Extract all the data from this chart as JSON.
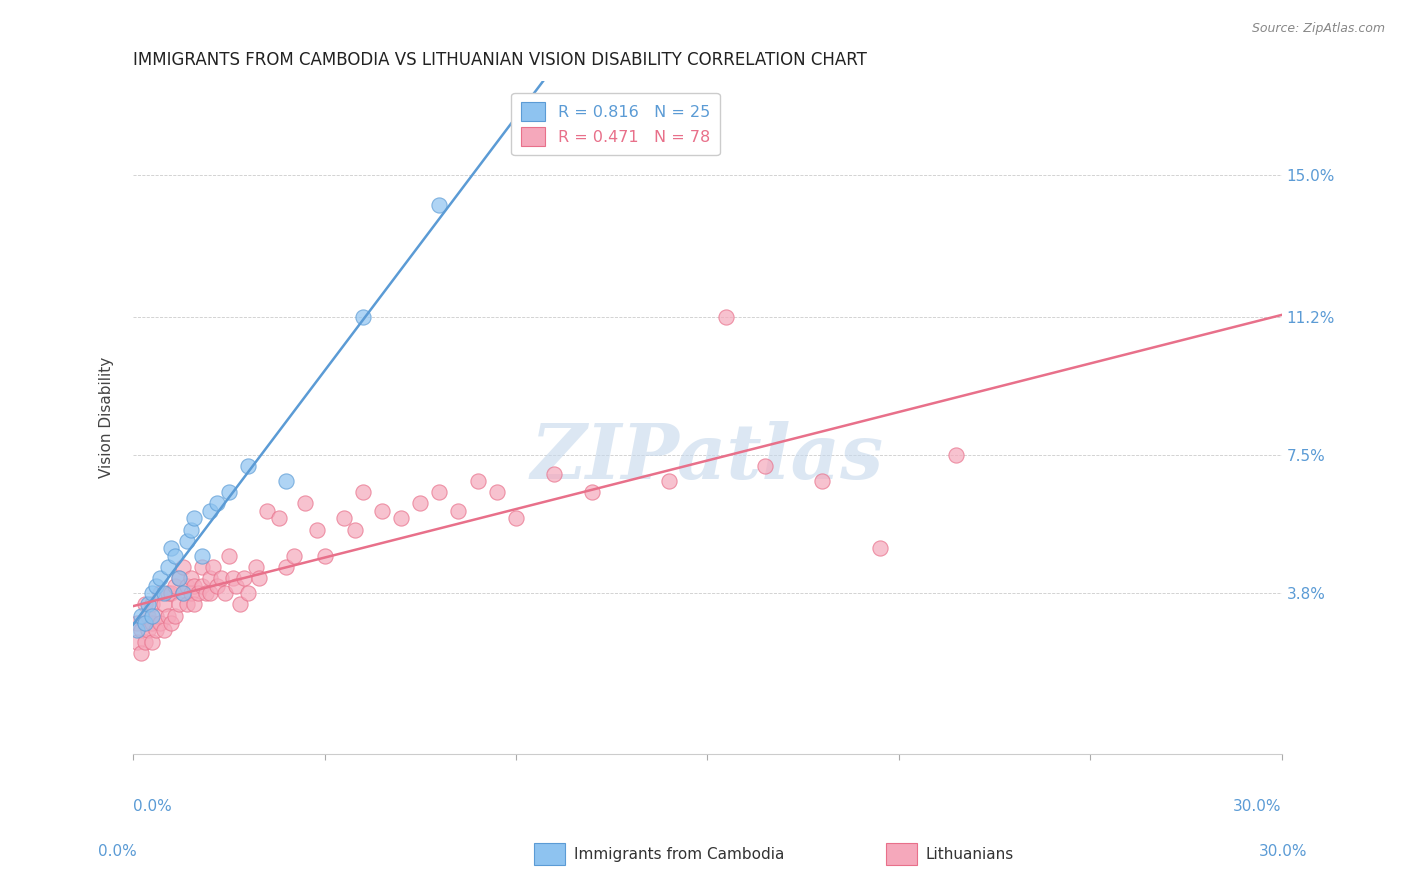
{
  "title": "IMMIGRANTS FROM CAMBODIA VS LITHUANIAN VISION DISABILITY CORRELATION CHART",
  "source": "Source: ZipAtlas.com",
  "ylabel": "Vision Disability",
  "ytick_labels": [
    "15.0%",
    "11.2%",
    "7.5%",
    "3.8%"
  ],
  "ytick_values": [
    0.15,
    0.112,
    0.075,
    0.038
  ],
  "xlim": [
    0.0,
    0.3
  ],
  "ylim": [
    -0.005,
    0.175
  ],
  "color_cambodia": "#8EC3F0",
  "color_lithuanian": "#F5A8BB",
  "color_line_cambodia": "#5B9BD5",
  "color_line_lithuanian": "#E8708A",
  "watermark_text": "ZIPatlas",
  "legend_line1": "R = 0.816   N = 25",
  "legend_line2": "R = 0.471   N = 78",
  "scatter_cambodia_x": [
    0.001,
    0.002,
    0.003,
    0.004,
    0.005,
    0.005,
    0.006,
    0.007,
    0.008,
    0.009,
    0.01,
    0.011,
    0.012,
    0.013,
    0.014,
    0.015,
    0.016,
    0.018,
    0.02,
    0.022,
    0.025,
    0.03,
    0.04,
    0.06,
    0.08
  ],
  "scatter_cambodia_y": [
    0.028,
    0.032,
    0.03,
    0.035,
    0.032,
    0.038,
    0.04,
    0.042,
    0.038,
    0.045,
    0.05,
    0.048,
    0.042,
    0.038,
    0.052,
    0.055,
    0.058,
    0.048,
    0.06,
    0.062,
    0.065,
    0.072,
    0.068,
    0.112,
    0.142
  ],
  "scatter_lithuanian_x": [
    0.001,
    0.001,
    0.002,
    0.002,
    0.003,
    0.003,
    0.003,
    0.004,
    0.004,
    0.005,
    0.005,
    0.005,
    0.006,
    0.006,
    0.007,
    0.007,
    0.008,
    0.008,
    0.009,
    0.009,
    0.01,
    0.01,
    0.011,
    0.011,
    0.012,
    0.012,
    0.013,
    0.013,
    0.014,
    0.014,
    0.015,
    0.015,
    0.016,
    0.016,
    0.017,
    0.018,
    0.018,
    0.019,
    0.02,
    0.02,
    0.021,
    0.022,
    0.023,
    0.024,
    0.025,
    0.026,
    0.027,
    0.028,
    0.029,
    0.03,
    0.032,
    0.033,
    0.035,
    0.038,
    0.04,
    0.042,
    0.045,
    0.048,
    0.05,
    0.055,
    0.058,
    0.06,
    0.065,
    0.07,
    0.075,
    0.08,
    0.085,
    0.09,
    0.095,
    0.1,
    0.11,
    0.12,
    0.14,
    0.155,
    0.165,
    0.18,
    0.195,
    0.215
  ],
  "scatter_lithuanian_y": [
    0.025,
    0.03,
    0.022,
    0.028,
    0.025,
    0.03,
    0.035,
    0.028,
    0.032,
    0.025,
    0.03,
    0.035,
    0.028,
    0.032,
    0.03,
    0.038,
    0.028,
    0.035,
    0.032,
    0.038,
    0.03,
    0.038,
    0.032,
    0.04,
    0.035,
    0.042,
    0.038,
    0.045,
    0.04,
    0.035,
    0.038,
    0.042,
    0.035,
    0.04,
    0.038,
    0.045,
    0.04,
    0.038,
    0.042,
    0.038,
    0.045,
    0.04,
    0.042,
    0.038,
    0.048,
    0.042,
    0.04,
    0.035,
    0.042,
    0.038,
    0.045,
    0.042,
    0.06,
    0.058,
    0.045,
    0.048,
    0.062,
    0.055,
    0.048,
    0.058,
    0.055,
    0.065,
    0.06,
    0.058,
    0.062,
    0.065,
    0.06,
    0.068,
    0.065,
    0.058,
    0.07,
    0.065,
    0.068,
    0.112,
    0.072,
    0.068,
    0.05,
    0.075
  ]
}
